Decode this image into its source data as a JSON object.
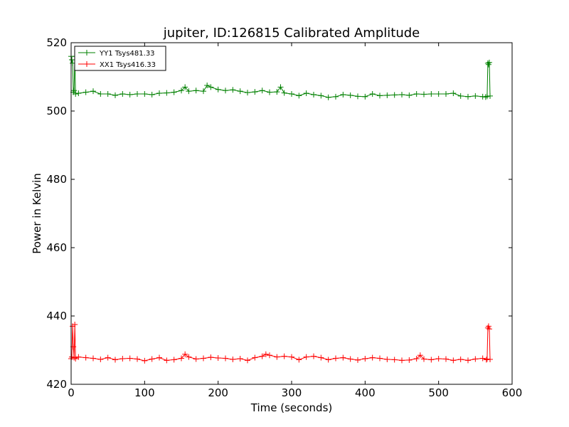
{
  "chart_data": {
    "type": "line",
    "title": "jupiter, ID:126815 Calibrated Amplitude",
    "xlabel": "Time (seconds)",
    "ylabel": "Power in Kelvin",
    "xlim": [
      0,
      600
    ],
    "ylim": [
      420,
      520
    ],
    "xticks": [
      "0",
      "100",
      "200",
      "300",
      "400",
      "500",
      "600"
    ],
    "yticks": [
      "420",
      "440",
      "460",
      "480",
      "500",
      "520"
    ],
    "grid": false,
    "legend_position": "top-left",
    "series": [
      {
        "name": "YY1 Tsys481.33",
        "color": "#008000",
        "marker": "+",
        "x": [
          0,
          1,
          2,
          3,
          4,
          5,
          6,
          10,
          20,
          30,
          40,
          50,
          60,
          70,
          80,
          90,
          100,
          110,
          120,
          130,
          140,
          150,
          155,
          160,
          170,
          180,
          185,
          190,
          200,
          210,
          220,
          230,
          240,
          250,
          260,
          270,
          280,
          285,
          290,
          300,
          310,
          320,
          330,
          340,
          350,
          360,
          370,
          380,
          390,
          400,
          410,
          420,
          430,
          440,
          450,
          460,
          470,
          480,
          490,
          500,
          510,
          520,
          530,
          540,
          550,
          560,
          564,
          566,
          567,
          568,
          569,
          570
        ],
        "values": [
          516,
          515,
          514,
          505.5,
          506,
          516,
          505,
          505.2,
          505.5,
          505.8,
          505,
          505,
          504.6,
          505,
          504.8,
          505,
          505,
          504.8,
          505.2,
          505.3,
          505.5,
          506,
          507,
          505.8,
          506,
          505.8,
          507.5,
          507,
          506.3,
          506,
          506.2,
          505.8,
          505.4,
          505.6,
          506,
          505.5,
          505.6,
          507,
          505.3,
          505,
          504.5,
          505.2,
          504.8,
          504.5,
          504,
          504.2,
          504.8,
          504.6,
          504.3,
          504.2,
          505,
          504.5,
          504.6,
          504.7,
          504.8,
          504.6,
          505,
          504.9,
          505,
          505,
          505,
          505.2,
          504.4,
          504.2,
          504.4,
          504.2,
          504.1,
          504.3,
          514,
          513.6,
          514.2,
          504.4
        ]
      },
      {
        "name": "XX1 Tsys416.33",
        "color": "#ff0000",
        "marker": "+",
        "x": [
          0,
          1,
          2,
          3,
          4,
          5,
          6,
          10,
          20,
          30,
          40,
          50,
          60,
          70,
          80,
          90,
          100,
          110,
          120,
          130,
          140,
          150,
          155,
          160,
          170,
          180,
          190,
          200,
          210,
          220,
          230,
          240,
          250,
          260,
          265,
          270,
          280,
          290,
          300,
          310,
          320,
          330,
          340,
          350,
          360,
          370,
          380,
          390,
          400,
          410,
          420,
          430,
          440,
          450,
          460,
          470,
          475,
          480,
          490,
          500,
          510,
          520,
          530,
          540,
          550,
          560,
          565,
          566,
          567,
          568,
          569,
          570
        ],
        "values": [
          427.5,
          428,
          437,
          431,
          427.8,
          437.5,
          427.5,
          428,
          427.8,
          427.6,
          427.3,
          427.8,
          427.2,
          427.5,
          427.6,
          427.4,
          426.9,
          427.4,
          427.8,
          427.0,
          427.2,
          427.6,
          428.8,
          428,
          427.4,
          427.6,
          427.9,
          427.7,
          427.6,
          427.3,
          427.5,
          427.0,
          427.8,
          428.2,
          428.8,
          428.5,
          428.0,
          428.2,
          428.0,
          427.2,
          428.0,
          428.2,
          427.8,
          427.2,
          427.6,
          427.8,
          427.4,
          427.1,
          427.5,
          427.8,
          427.6,
          427.3,
          427.2,
          427.0,
          427.1,
          427.5,
          428.5,
          427.4,
          427.2,
          427.5,
          427.4,
          427.0,
          427.3,
          427.0,
          427.4,
          427.6,
          427.2,
          427.4,
          436.5,
          437,
          436.2,
          427.3
        ]
      }
    ]
  }
}
